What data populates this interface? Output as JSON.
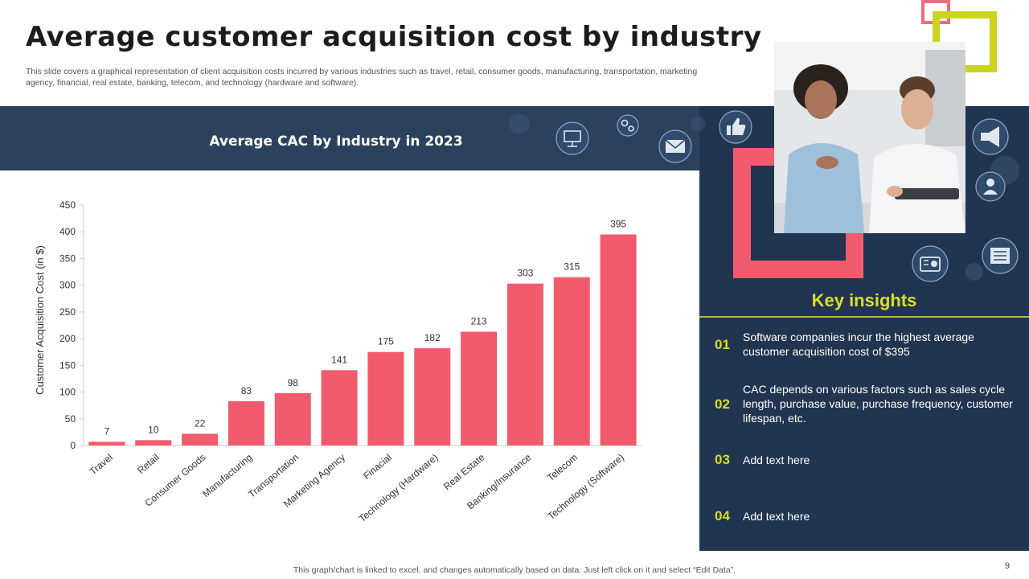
{
  "slide": {
    "title": "Average customer acquisition cost by industry",
    "subtitle": "This slide covers a graphical representation of client acquisition costs incurred by various industries such as travel, retail, consumer goods, manufacturing, transportation, marketing agency, financial, real estate, banking, telecom, and technology (hardware and software).",
    "footnote": "This graph/chart is linked to excel,  and changes automatically based on data. Just left click on it and select “Edit Data”.",
    "page_number": "9"
  },
  "colors": {
    "bar": "#f25b6d",
    "band": "#2b415d",
    "panel": "#223550",
    "accent_lime": "#cbd51e",
    "accent_pink": "#f25b6d"
  },
  "chart_data": {
    "type": "bar",
    "title": "Average CAC by Industry in 2023",
    "xlabel": "",
    "ylabel": "Customer Acquisition Cost (in $)",
    "ylim": [
      0,
      450
    ],
    "yticks": [
      0,
      50,
      100,
      150,
      200,
      250,
      300,
      350,
      400,
      450
    ],
    "categories": [
      "Travel",
      "Retail",
      "Consumer Goods",
      "Manufacturing",
      "Transportation",
      "Marketing Agency",
      "Finacial",
      "Technology (Hardware)",
      "Real Estate",
      "Banking/Insurance",
      "Telecom",
      "Technology (Software)"
    ],
    "values": [
      7,
      10,
      22,
      83,
      98,
      141,
      175,
      182,
      213,
      303,
      315,
      395
    ],
    "data_labels": true,
    "grid": false,
    "legend": "none"
  },
  "insights": {
    "title": "Key insights",
    "items": [
      {
        "num": "01",
        "text": "Software companies incur the highest average customer acquisition cost of $395"
      },
      {
        "num": "02",
        "text": "CAC depends on various factors such as sales cycle length, purchase value, purchase frequency, customer lifespan, etc."
      },
      {
        "num": "03",
        "text": "Add text here"
      },
      {
        "num": "04",
        "text": "Add text here"
      }
    ]
  },
  "icons": [
    "monitor-icon",
    "gears-icon",
    "mail-icon",
    "thumbs-up-icon",
    "megaphone-icon",
    "user-icon",
    "radio-icon",
    "newspaper-icon"
  ]
}
